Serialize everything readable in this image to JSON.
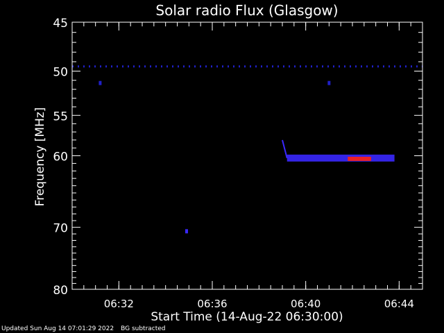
{
  "chart_data": {
    "type": "heatmap",
    "title": "Solar radio Flux (Glasgow)",
    "xlabel": "Start Time (14-Aug-22 06:30:00)",
    "ylabel": "Frequency [MHz]",
    "xlim_minutes": [
      0,
      15
    ],
    "ylim": [
      45,
      80
    ],
    "y_axis_reversed": true,
    "y_scale": "log",
    "x_ticks": [
      {
        "minute": 2,
        "label": "06:32"
      },
      {
        "minute": 6,
        "label": "06:36"
      },
      {
        "minute": 10,
        "label": "06:40"
      },
      {
        "minute": 14,
        "label": "06:44"
      }
    ],
    "y_ticks": [
      {
        "value": 45,
        "label": "45"
      },
      {
        "value": 50,
        "label": "50"
      },
      {
        "value": 55,
        "label": "55"
      },
      {
        "value": 60,
        "label": "60"
      },
      {
        "value": 70,
        "label": "70"
      },
      {
        "value": 80,
        "label": "80"
      }
    ],
    "y_minor_ticks": [
      46,
      47,
      48,
      49,
      51,
      52,
      53,
      54,
      56,
      57,
      58,
      59,
      61,
      62,
      63,
      64,
      65,
      66,
      67,
      68,
      69,
      71,
      72,
      73,
      74,
      75,
      76,
      77,
      78,
      79
    ],
    "x_minor_step_minutes": 0.5,
    "features": [
      {
        "name": "interference-line",
        "freq_mhz": 49.5,
        "start_min": 0,
        "end_min": 15,
        "intensity": "low"
      },
      {
        "name": "burst-onset",
        "freq_start_mhz": 58.0,
        "freq_end_mhz": 60.3,
        "start_min": 9.0,
        "end_min": 9.2,
        "intensity": "medium"
      },
      {
        "name": "burst-band",
        "freq_mhz": 60.3,
        "start_min": 9.2,
        "end_min": 13.8,
        "intensity": "medium"
      },
      {
        "name": "burst-core",
        "freq_mhz": 60.4,
        "start_min": 11.8,
        "end_min": 12.8,
        "intensity": "high"
      },
      {
        "name": "spot",
        "freq_mhz": 51.3,
        "minute": 1.2,
        "intensity": "low"
      },
      {
        "name": "spot",
        "freq_mhz": 51.3,
        "minute": 11.0,
        "intensity": "low"
      },
      {
        "name": "spot",
        "freq_mhz": 70.6,
        "minute": 4.9,
        "intensity": "medium"
      }
    ],
    "colors": {
      "background": "#000000",
      "low": "#2020c8",
      "medium": "#3a28ff",
      "high": "#ff2010",
      "axis": "#ffffff"
    }
  },
  "footer": {
    "updated": "Updated Sun Aug 14 07:01:29 2022",
    "note": "BG subtracted"
  }
}
